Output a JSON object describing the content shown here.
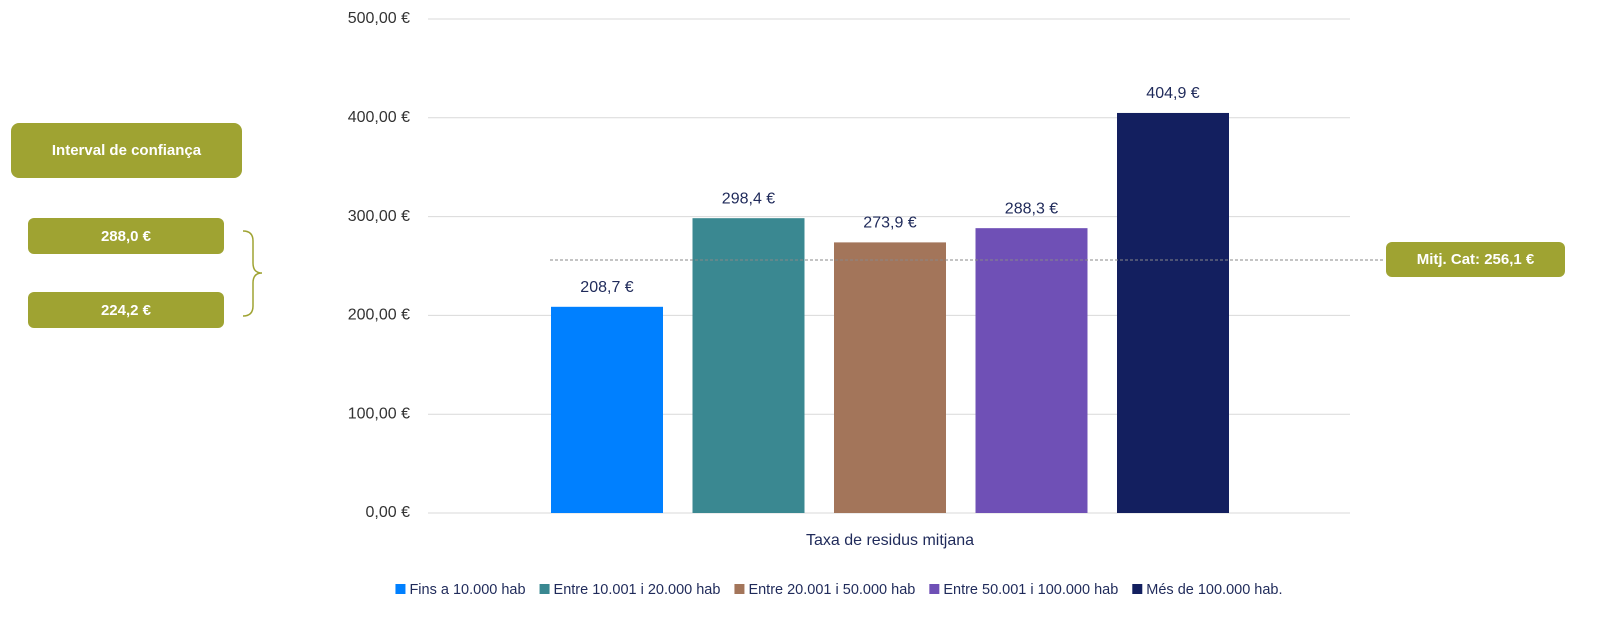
{
  "chart_data": {
    "type": "bar",
    "categories": [
      "Taxa de residus mitjana"
    ],
    "series": [
      {
        "name": "Fins a 10.000 hab",
        "color": "#0080ff",
        "values": [
          208.7
        ],
        "value_labels": [
          "208,7 €"
        ]
      },
      {
        "name": "Entre 10.001 i 20.000 hab",
        "color": "#3a8891",
        "values": [
          298.4
        ],
        "value_labels": [
          "298,4 €"
        ]
      },
      {
        "name": "Entre 20.001 i 50.000 hab",
        "color": "#a3755a",
        "values": [
          273.9
        ],
        "value_labels": [
          "273,9 €"
        ]
      },
      {
        "name": "Entre 50.001 i 100.000 hab",
        "color": "#6f50b6",
        "values": [
          288.3
        ],
        "value_labels": [
          "288,3 €"
        ]
      },
      {
        "name": "Més de 100.000 hab.",
        "color": "#131f5f",
        "values": [
          404.9
        ],
        "value_labels": [
          "404,9 €"
        ]
      }
    ],
    "ylim": [
      0,
      500
    ],
    "yticks": [
      {
        "value": 0,
        "label": "0,00 €"
      },
      {
        "value": 100,
        "label": "100,00 €"
      },
      {
        "value": 200,
        "label": "200,00 €"
      },
      {
        "value": 300,
        "label": "300,00 €"
      },
      {
        "value": 400,
        "label": "400,00 €"
      },
      {
        "value": 500,
        "label": "500,00 €"
      }
    ],
    "grid": true,
    "legend": "bottom",
    "mean_line": {
      "value": 256.1,
      "label": "Mitj. Cat: 256,1 €"
    },
    "confidence_interval": {
      "title": "Interval de confiança",
      "upper": "288,0 €",
      "lower": "224,2 €"
    }
  }
}
